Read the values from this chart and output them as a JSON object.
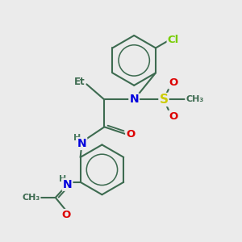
{
  "background_color": "#ebebeb",
  "bond_color": "#3d6b50",
  "bond_width": 1.5,
  "atom_colors": {
    "N": "#0000dd",
    "O": "#dd0000",
    "S": "#cccc00",
    "Cl": "#77cc00",
    "C": "#3d6b50",
    "H": "#4a7a60"
  },
  "figsize": [
    3.0,
    3.0
  ],
  "dpi": 100,
  "xlim": [
    0,
    10
  ],
  "ylim": [
    0,
    10
  ]
}
